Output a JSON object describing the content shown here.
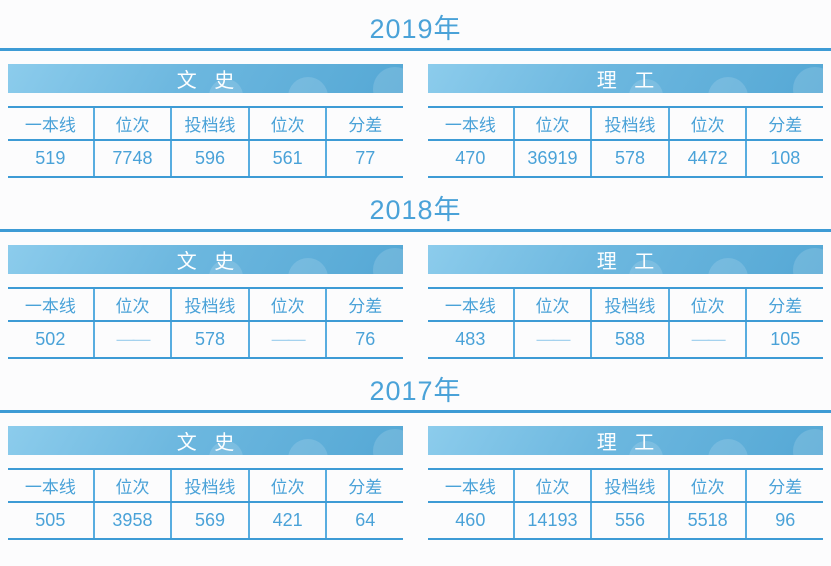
{
  "columns": [
    "一本线",
    "位次",
    "投档线",
    "位次",
    "分差"
  ],
  "colors": {
    "accent_blue": "#4aa2d8",
    "rule_blue": "#3d9bd5",
    "bar_gradient_start": "#8cccec",
    "bar_gradient_end": "#55a8d5",
    "muted_dash": "#a5d2ee",
    "background": "#fcfcfd"
  },
  "sections": [
    {
      "year_label": "2019年",
      "tables": [
        {
          "title": "文 史",
          "values": [
            "519",
            "7748",
            "596",
            "561",
            "77"
          ]
        },
        {
          "title": "理 工",
          "values": [
            "470",
            "36919",
            "578",
            "4472",
            "108"
          ]
        }
      ]
    },
    {
      "year_label": "2018年",
      "tables": [
        {
          "title": "文 史",
          "values": [
            "502",
            "——",
            "578",
            "——",
            "76"
          ]
        },
        {
          "title": "理 工",
          "values": [
            "483",
            "——",
            "588",
            "——",
            "105"
          ]
        }
      ]
    },
    {
      "year_label": "2017年",
      "tables": [
        {
          "title": "文 史",
          "values": [
            "505",
            "3958",
            "569",
            "421",
            "64"
          ]
        },
        {
          "title": "理 工",
          "values": [
            "460",
            "14193",
            "556",
            "5518",
            "96"
          ]
        }
      ]
    }
  ]
}
